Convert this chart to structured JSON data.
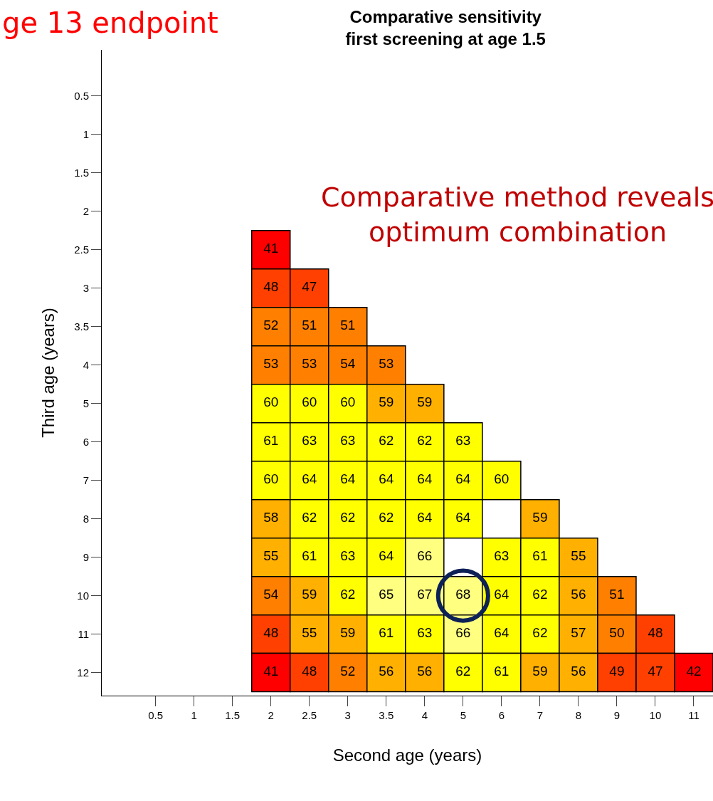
{
  "chart_data": {
    "type": "heatmap",
    "title": "Comparative sensitivity\nfirst screening at age 1.5",
    "xlabel": "Second age (years)",
    "ylabel": "Third age (years)",
    "categories": [
      "0.5",
      "1",
      "1.5",
      "2",
      "2.5",
      "3",
      "3.5",
      "4",
      "5",
      "6",
      "7",
      "8",
      "9",
      "10",
      "11"
    ],
    "y_categories": [
      "0.5",
      "1",
      "1.5",
      "2",
      "2.5",
      "3",
      "3.5",
      "4",
      "5",
      "6",
      "7",
      "8",
      "9",
      "10",
      "11",
      "12"
    ],
    "cells": [
      [
        null,
        null,
        null,
        null,
        null,
        null,
        null,
        null,
        null,
        null,
        null,
        null,
        null,
        null,
        null
      ],
      [
        null,
        null,
        null,
        null,
        null,
        null,
        null,
        null,
        null,
        null,
        null,
        null,
        null,
        null,
        null
      ],
      [
        null,
        null,
        null,
        null,
        null,
        null,
        null,
        null,
        null,
        null,
        null,
        null,
        null,
        null,
        null
      ],
      [
        null,
        null,
        null,
        null,
        null,
        null,
        null,
        null,
        null,
        null,
        null,
        null,
        null,
        null,
        null
      ],
      [
        null,
        null,
        null,
        41,
        null,
        null,
        null,
        null,
        null,
        null,
        null,
        null,
        null,
        null,
        null
      ],
      [
        null,
        null,
        null,
        48,
        47,
        null,
        null,
        null,
        null,
        null,
        null,
        null,
        null,
        null,
        null
      ],
      [
        null,
        null,
        null,
        52,
        51,
        51,
        null,
        null,
        null,
        null,
        null,
        null,
        null,
        null,
        null
      ],
      [
        null,
        null,
        null,
        53,
        53,
        54,
        53,
        null,
        null,
        null,
        null,
        null,
        null,
        null,
        null
      ],
      [
        null,
        null,
        null,
        60,
        60,
        60,
        59,
        59,
        null,
        null,
        null,
        null,
        null,
        null,
        null
      ],
      [
        null,
        null,
        null,
        61,
        63,
        63,
        62,
        62,
        63,
        null,
        null,
        null,
        null,
        null,
        null
      ],
      [
        null,
        null,
        null,
        60,
        64,
        64,
        64,
        64,
        64,
        60,
        null,
        null,
        null,
        null,
        null
      ],
      [
        null,
        null,
        null,
        58,
        62,
        62,
        62,
        64,
        64,
        null,
        59,
        null,
        null,
        null,
        null
      ],
      [
        null,
        null,
        null,
        55,
        61,
        63,
        64,
        66,
        null,
        63,
        61,
        55,
        null,
        null,
        null
      ],
      [
        null,
        null,
        null,
        54,
        59,
        62,
        65,
        67,
        68,
        64,
        62,
        56,
        51,
        null,
        null
      ],
      [
        null,
        null,
        null,
        48,
        55,
        59,
        61,
        63,
        66,
        64,
        62,
        57,
        50,
        48,
        null
      ],
      [
        null,
        null,
        null,
        41,
        48,
        52,
        56,
        56,
        62,
        61,
        59,
        56,
        49,
        47,
        42
      ]
    ],
    "data_labels": true,
    "annotations": [
      "ge 13 endpoint",
      "Comparative method reveals\noptimum combination"
    ]
  }
}
